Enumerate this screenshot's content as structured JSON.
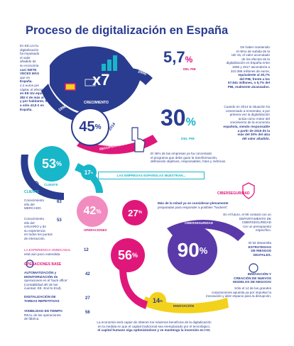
{
  "title": "Proceso de digitalización en España",
  "left_top": {
    "line1": "En EE.UU la",
    "line2": "digitalización",
    "line3": "ha impulsado",
    "line4": "el valor",
    "line5": "añadido de",
    "line6": "su economía",
    "line7": "casi SIETE",
    "line8": "VECES MÁS",
    "line9": "que en",
    "line10": "España.",
    "line11": "2,4 euros per",
    "line12": "cápita; el efecto",
    "line13": "en EE UU equivale a",
    "line14": "382 € de más al año",
    "line15": "y por habitante, frente",
    "line16": "a sólo 43,9 € en",
    "line17": "España."
  },
  "x7": "x7",
  "crecimiento": "CRECIMIENTO",
  "year1996": "1996",
  "year2006": "2006",
  "year2014": "2014",
  "year2017": "2017",
  "pct57": "5,7",
  "pct57_unit": "%",
  "pct57_sub": "DEL PIB",
  "right_top": {
    "line1": "De haber mantenido",
    "line2": "el ritmo de subida de la",
    "line3": "UE-15, el valor acumulado",
    "line4": "de los efectos de la",
    "line5": "digitalización en España entre",
    "line6": "1996 y 2017 ascendería a",
    "line7": "310.366 millones de euros,",
    "line8": "equivalente al 30,7%",
    "line9": "del PIB, frente a los",
    "line10": "57.841 millones, o 5,7% del",
    "line11": "PIB, realmente alcanzados."
  },
  "pct45": "45",
  "pct45_unit": "%",
  "recuperacion": "RECUPERACIÓN",
  "pct30": "30",
  "pct30_unit": "%",
  "pct30_sub": "DEL PIB",
  "right_mid": {
    "line1": "Cuando en 2014 la situación ha",
    "line2": "comenzado a enmendar, a por",
    "line3": "primera vez la digitalización",
    "line4": "actúa como motor del",
    "line5": "crecimiento de la economía",
    "line6": "española, siendo responsable",
    "line7": "a partir de 2015 de la",
    "line8": "más del 30% del alza",
    "line9": "del valor añadido."
  },
  "pct45b_line1": "El 45% de las empresas ya ha concretado",
  "pct45b_line2": "el programa que debe guiar la transformación,",
  "pct45b_line3": "definiendo objetivos, responsables, hitos y métricas.",
  "pct53": "53",
  "pct53_unit": "%",
  "cliente_band": "CLIENTE",
  "pct17": "17",
  "pct17_unit": "%",
  "empresas_banner": "LAS EMPRESAS ESPAÑOLAS MUESTRAN...",
  "cliente_head": "CLIENTE",
  "cliente_rows": [
    {
      "label1": "Conocimiento",
      "label2": "ello del",
      "label3": "MERCADO.",
      "value": "63"
    },
    {
      "label1": "Conocimiento",
      "label2": "ello del",
      "label3": "USUARIO y de",
      "label4": "su experiencia",
      "label5": "en todos los puntos",
      "label6": "de interacción.",
      "value": "53"
    },
    {
      "label1": "LA EXPERIENCIA OMNICANAL",
      "label2": "está aún poco extendida.",
      "value": "12"
    }
  ],
  "pct42": "42",
  "pct42_unit": "%",
  "pct27": "27",
  "pct27_unit": "%",
  "operaciones_band": "OPERACIONES",
  "ciber_head": "CIBERSEGURIDAD",
  "ciber_line1": "Más de la mitad ya se consideran plenamente",
  "ciber_line2": "preparadas para responder a posibles \"hackers\".",
  "ciber_block": {
    "line1": "En el futuro, el 90 contará con un",
    "line2": "DEPARTAMENTO DE",
    "line3": "CIBERSEGURIDAD",
    "line4": "con un presupuesto",
    "line5": "específico."
  },
  "ciber_band": "CIBERSEGURIDAD",
  "pct90": "90",
  "pct90_unit": "%",
  "ciber_block2": {
    "line1": "El 62 desarrolla",
    "line2": "ESTRATEGIAS",
    "line3": "DE RIESGOS",
    "line4": "DIGITALES."
  },
  "pct56": "56",
  "pct56_unit": "%",
  "operaciones_head": "OPERACIONES BASE",
  "ops_rows": [
    {
      "label1": "AUTOMATIZACIÓN y",
      "label2": "MONITORIZACIÓN de",
      "label3": "operaciones en el 'back office'",
      "label4": "(contabilidad ahí de las",
      "label5": "cuentas: EE. End to End).",
      "value": "42"
    },
    {
      "label1": "DIGITALIZACIÓN DE",
      "label2": "TAREAS REPETITIVAS",
      "value": "27"
    },
    {
      "label1": "VISIBILIDAD EN TIEMPO",
      "label2": "REAL de las operaciones",
      "label3": "de fábrica.",
      "value": "56"
    }
  ],
  "innov_head1": "INNOVACIÓN Y",
  "innov_head2": "CREACIÓN DE NUEVOS",
  "innov_head3": "MODELOS DE NEGOCIO",
  "innov_line1": "Sólo el 14 de las grandes",
  "innov_line2": "corporaciones apuesta ya por impulsar la",
  "innov_line3": "innovación y abrir espacio para la disrupción.",
  "pct14": "14",
  "pct14_unit": "%",
  "innovacion_band": "INNOVACIÓN",
  "footer1": "La economía será capaz de obtener los máximos beneficios de la digitalización",
  "footer2": "en la medida en que el capital tradicional sea reemplazado por el tecnológico,",
  "footer3": "el capital humano siga optimizándose y se mantenga la inversión en I+D.",
  "colors": {
    "navy": "#2a3c8f",
    "pink": "#e0177a",
    "teal": "#18b6c9",
    "purple": "#5a3aa8",
    "yellow": "#f2d21c",
    "lightpink": "#f28cc0",
    "green": "#7ac043"
  }
}
